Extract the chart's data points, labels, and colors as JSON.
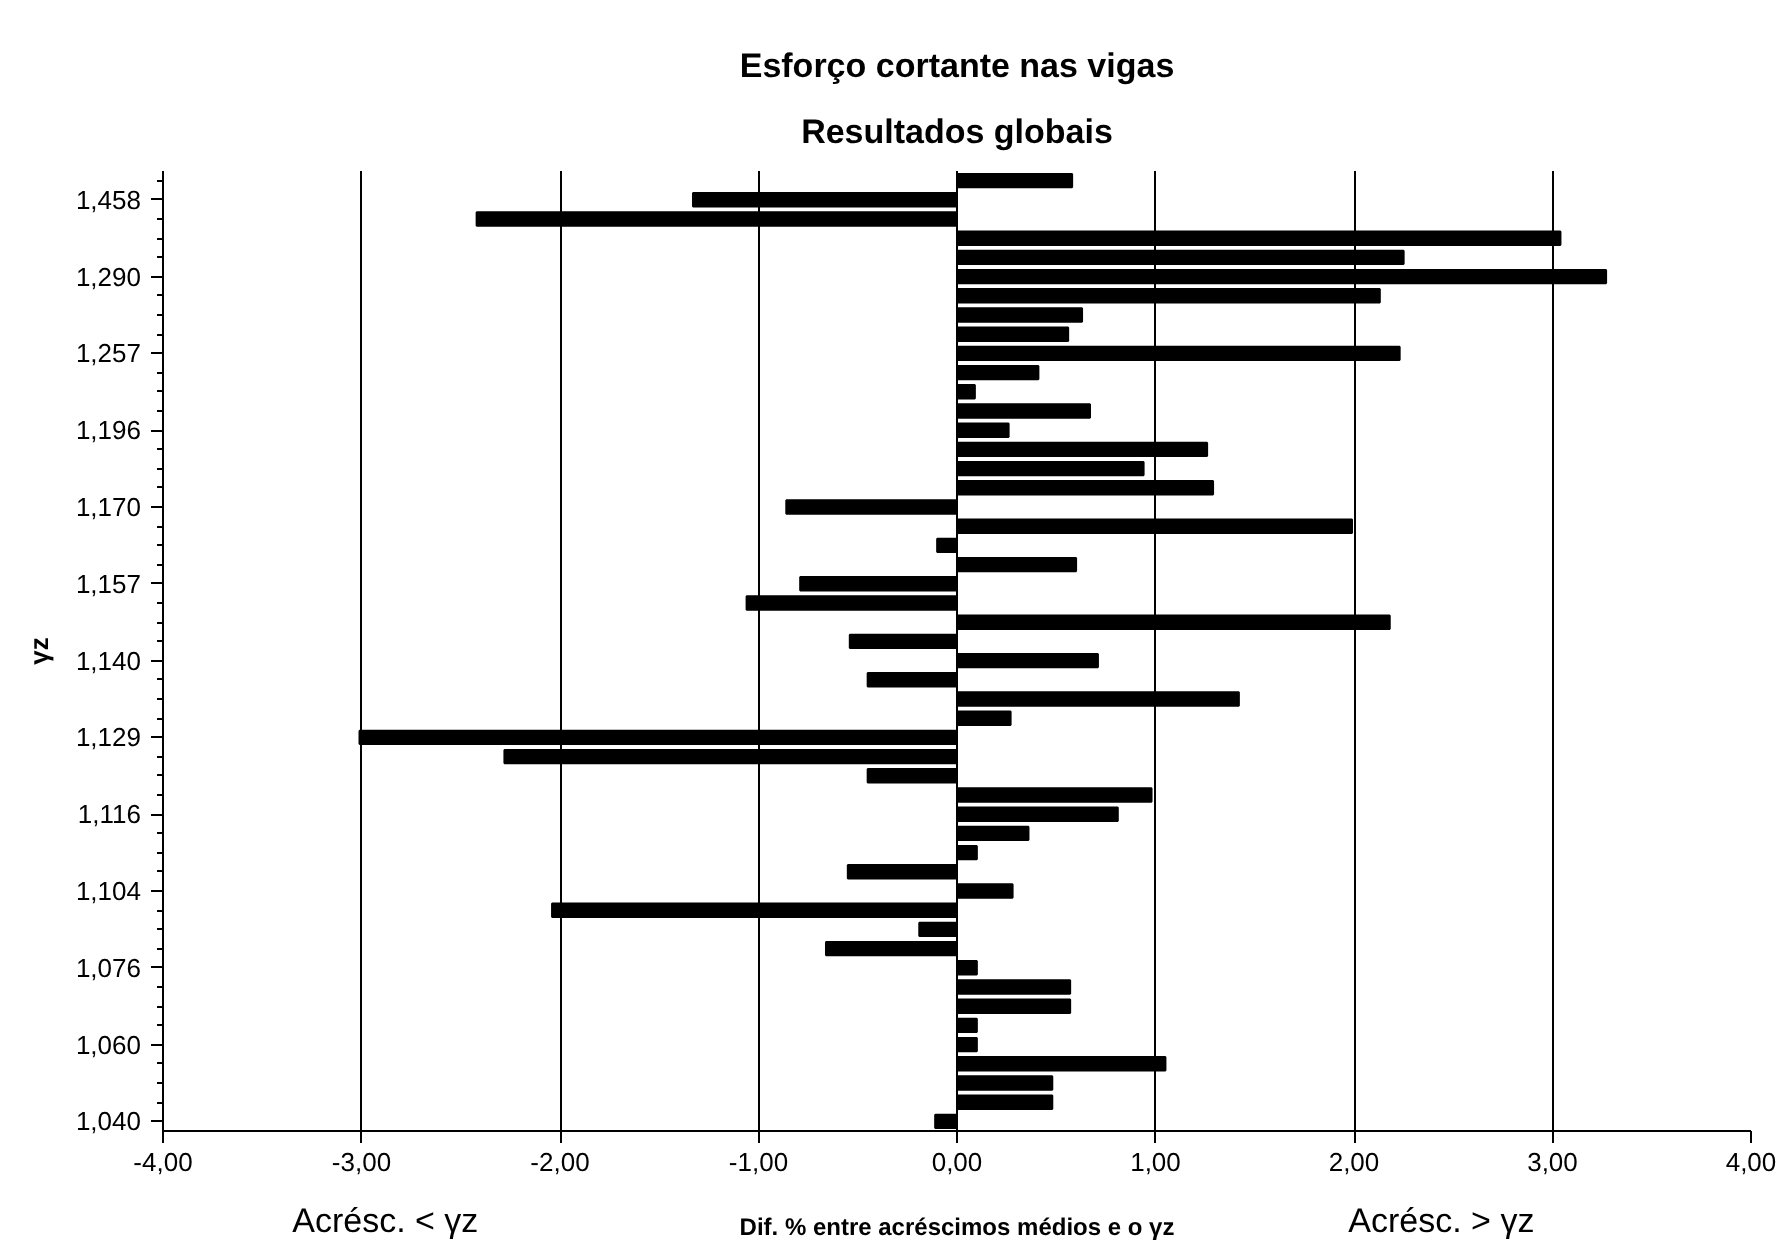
{
  "chart_data": {
    "type": "bar",
    "orientation": "horizontal",
    "title": "Esforço cortante nas vigas",
    "subtitle": "Resultados globais",
    "xlabel": "Dif. % entre acréscimos médios e o γz",
    "ylabel": "γz",
    "annotations": [
      "Acrésc. < γz",
      "Acrésc. > γz"
    ],
    "categories": [
      null,
      "1,458",
      null,
      null,
      null,
      "1,290",
      null,
      null,
      null,
      "1,257",
      null,
      null,
      null,
      "1,196",
      null,
      null,
      null,
      "1,170",
      null,
      null,
      null,
      "1,157",
      null,
      null,
      null,
      "1,140",
      null,
      null,
      null,
      "1,129",
      null,
      null,
      null,
      "1,116",
      null,
      null,
      null,
      "1,104",
      null,
      null,
      null,
      "1,076",
      null,
      null,
      null,
      "1,060",
      null,
      null,
      null,
      "1,040"
    ],
    "series": [
      {
        "color": "#000000",
        "values": [
          0.58,
          -1.33,
          -2.42,
          3.04,
          2.25,
          3.27,
          2.13,
          0.63,
          0.56,
          2.23,
          0.41,
          0.09,
          0.67,
          0.26,
          1.26,
          0.94,
          1.29,
          -0.86,
          1.99,
          -0.1,
          0.6,
          -0.79,
          -1.06,
          2.18,
          -0.54,
          0.71,
          -0.45,
          1.42,
          0.27,
          -3.01,
          -2.28,
          -0.45,
          0.98,
          0.81,
          0.36,
          0.1,
          -0.55,
          0.28,
          -2.04,
          -0.19,
          -0.66,
          0.1,
          0.57,
          0.57,
          0.1,
          0.1,
          1.05,
          0.48,
          0.48,
          -0.11
        ]
      }
    ],
    "xlim": [
      -4,
      4
    ],
    "xticks": [
      {
        "value": -4,
        "label": "-4,00"
      },
      {
        "value": -3,
        "label": "-3,00"
      },
      {
        "value": -2,
        "label": "-2,00"
      },
      {
        "value": -1,
        "label": "-1,00"
      },
      {
        "value": 0,
        "label": "0,00"
      },
      {
        "value": 1,
        "label": "1,00"
      },
      {
        "value": 2,
        "label": "2,00"
      },
      {
        "value": 3,
        "label": "3,00"
      },
      {
        "value": 4,
        "label": "4,00"
      }
    ],
    "grid": "x"
  }
}
